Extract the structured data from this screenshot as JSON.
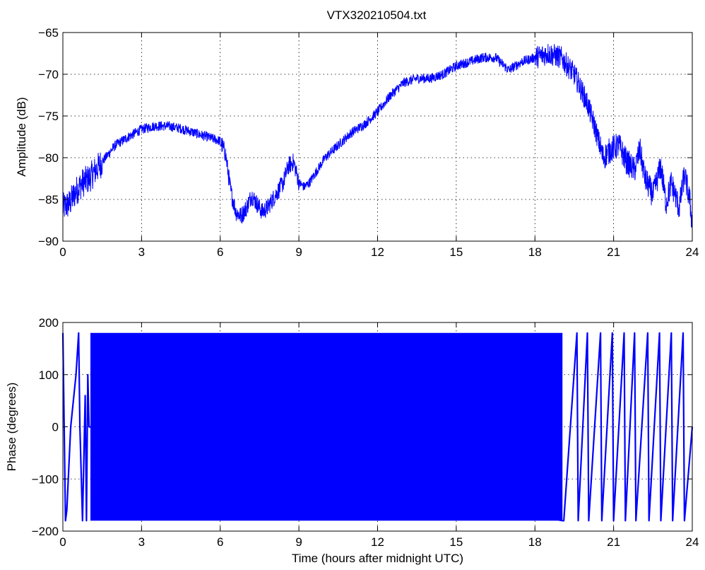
{
  "figure": {
    "title": "VTX320210504.txt",
    "colors": {
      "series": "#0000ff",
      "axes": "#000000",
      "grid": "#000000",
      "background": "#ffffff"
    }
  },
  "chart_data": [
    {
      "type": "line",
      "title": "VTX320210504.txt",
      "xlabel": "",
      "ylabel": "Amplitude (dB)",
      "xlim": [
        0,
        24
      ],
      "ylim": [
        -90,
        -65
      ],
      "x_ticks": [
        0,
        3,
        6,
        9,
        12,
        15,
        18,
        21,
        24
      ],
      "y_ticks": [
        -90,
        -85,
        -80,
        -75,
        -70,
        -65
      ],
      "x_tick_labels": [
        "0",
        "3",
        "6",
        "9",
        "12",
        "15",
        "18",
        "21",
        "24"
      ],
      "y_tick_labels": [
        "−90",
        "−85",
        "−80",
        "−75",
        "−70",
        "−65"
      ],
      "grid": true,
      "series": [
        {
          "color": "#0000ff",
          "x": [
            0,
            0.25,
            0.5,
            0.75,
            1.0,
            1.5,
            2.0,
            2.5,
            3.0,
            3.5,
            4.0,
            4.5,
            5.0,
            5.5,
            6.0,
            6.2,
            6.4,
            6.6,
            6.8,
            7.0,
            7.2,
            7.4,
            7.6,
            7.8,
            8.0,
            8.2,
            8.4,
            8.6,
            8.8,
            9.0,
            9.2,
            9.4,
            9.6,
            9.8,
            10.0,
            10.5,
            11.0,
            11.5,
            12.0,
            12.5,
            13.0,
            13.5,
            14.0,
            14.5,
            15.0,
            15.5,
            16.0,
            16.5,
            17.0,
            17.5,
            18.0,
            18.5,
            19.0,
            19.5,
            20.0,
            20.3,
            20.6,
            20.9,
            21.2,
            21.5,
            21.8,
            22.0,
            22.2,
            22.5,
            22.8,
            23.0,
            23.2,
            23.5,
            23.7,
            23.9,
            24.0
          ],
          "y": [
            -86.0,
            -85.5,
            -84.0,
            -83.0,
            -82.5,
            -80.5,
            -78.5,
            -77.5,
            -76.6,
            -76.2,
            -76.2,
            -76.5,
            -77.0,
            -77.5,
            -78.0,
            -79.5,
            -84.0,
            -86.5,
            -87.0,
            -86.0,
            -84.5,
            -85.5,
            -86.5,
            -86.0,
            -85.0,
            -84.0,
            -83.0,
            -81.0,
            -80.5,
            -83.0,
            -83.5,
            -83.0,
            -82.0,
            -81.0,
            -80.0,
            -78.5,
            -77.0,
            -76.0,
            -74.5,
            -72.5,
            -71.0,
            -70.5,
            -70.5,
            -70.0,
            -69.0,
            -68.5,
            -68.0,
            -68.0,
            -69.5,
            -68.5,
            -68.0,
            -67.5,
            -68.0,
            -70.0,
            -73.5,
            -76.5,
            -80.0,
            -79.0,
            -78.5,
            -80.5,
            -81.5,
            -79.0,
            -82.5,
            -84.5,
            -81.0,
            -85.5,
            -83.0,
            -86.0,
            -82.0,
            -85.0,
            -88.0
          ]
        }
      ]
    },
    {
      "type": "line",
      "title": "",
      "xlabel": "Time (hours after midnight UTC)",
      "ylabel": "Phase (degrees)",
      "xlim": [
        0,
        24
      ],
      "ylim": [
        -200,
        200
      ],
      "x_ticks": [
        0,
        3,
        6,
        9,
        12,
        15,
        18,
        21,
        24
      ],
      "y_ticks": [
        -200,
        -100,
        0,
        100,
        200
      ],
      "x_tick_labels": [
        "0",
        "3",
        "6",
        "9",
        "12",
        "15",
        "18",
        "21",
        "24"
      ],
      "y_tick_labels": [
        "−200",
        "−100",
        "0",
        "100",
        "200"
      ],
      "grid": true,
      "series": [
        {
          "color": "#0000ff",
          "phase_wrap": [
            -180,
            180
          ],
          "dense_band_x": [
            1.05,
            19.05
          ],
          "x": [
            0.0,
            0.1,
            0.15,
            0.3,
            0.5,
            0.6,
            0.65,
            0.75,
            0.85,
            0.9,
            0.95,
            1.0,
            19.05,
            19.1,
            19.6,
            19.65,
            20.0,
            20.05,
            20.5,
            20.55,
            20.95,
            21.0,
            21.4,
            21.45,
            21.8,
            21.85,
            22.3,
            22.35,
            22.75,
            22.8,
            23.2,
            23.25,
            23.65,
            23.7,
            24.0
          ],
          "y": [
            180,
            -180,
            -160,
            0,
            100,
            180,
            0,
            -180,
            60,
            -180,
            100,
            0,
            -180,
            -180,
            180,
            -180,
            180,
            -180,
            180,
            -180,
            180,
            -180,
            180,
            -180,
            180,
            -180,
            180,
            -180,
            180,
            -180,
            180,
            -180,
            180,
            -180,
            0
          ]
        }
      ]
    }
  ]
}
